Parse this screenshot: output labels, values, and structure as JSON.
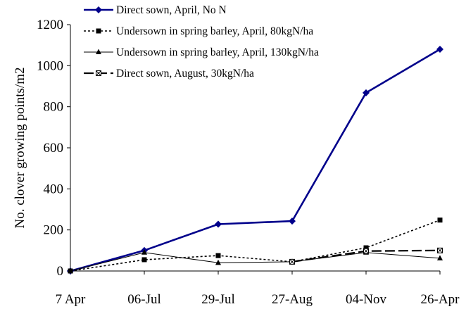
{
  "chart_data": {
    "type": "line",
    "title": "",
    "xlabel": "",
    "ylabel": "No. clover growing points/m2",
    "categories": [
      "7 Apr",
      "06-Jul",
      "29-Jul",
      "27-Aug",
      "04-Nov",
      "26-Apr"
    ],
    "ylim": [
      0,
      1200
    ],
    "yticks": [
      0,
      200,
      400,
      600,
      800,
      1000,
      1200
    ],
    "grid": false,
    "legend_position": "top-left",
    "series": [
      {
        "name": "Direct sown, April, No N",
        "values": [
          0,
          100,
          228,
          243,
          868,
          1080
        ],
        "color": "#00008B",
        "marker": "diamond",
        "line_style": "solid-thick"
      },
      {
        "name": "Undersown in spring barley, April, 80kgN/ha",
        "values": [
          0,
          55,
          75,
          45,
          113,
          248
        ],
        "color": "#000000",
        "marker": "square",
        "line_style": "dotted"
      },
      {
        "name": "Undersown in spring barley, April, 130kgN/ha",
        "values": [
          0,
          90,
          40,
          45,
          90,
          62
        ],
        "color": "#000000",
        "marker": "triangle",
        "line_style": "solid-thin"
      },
      {
        "name": "Direct sown, August, 30kgN/ha",
        "values": [
          null,
          null,
          null,
          45,
          97,
          100
        ],
        "color": "#000000",
        "marker": "cross",
        "line_style": "long-dash"
      }
    ]
  }
}
